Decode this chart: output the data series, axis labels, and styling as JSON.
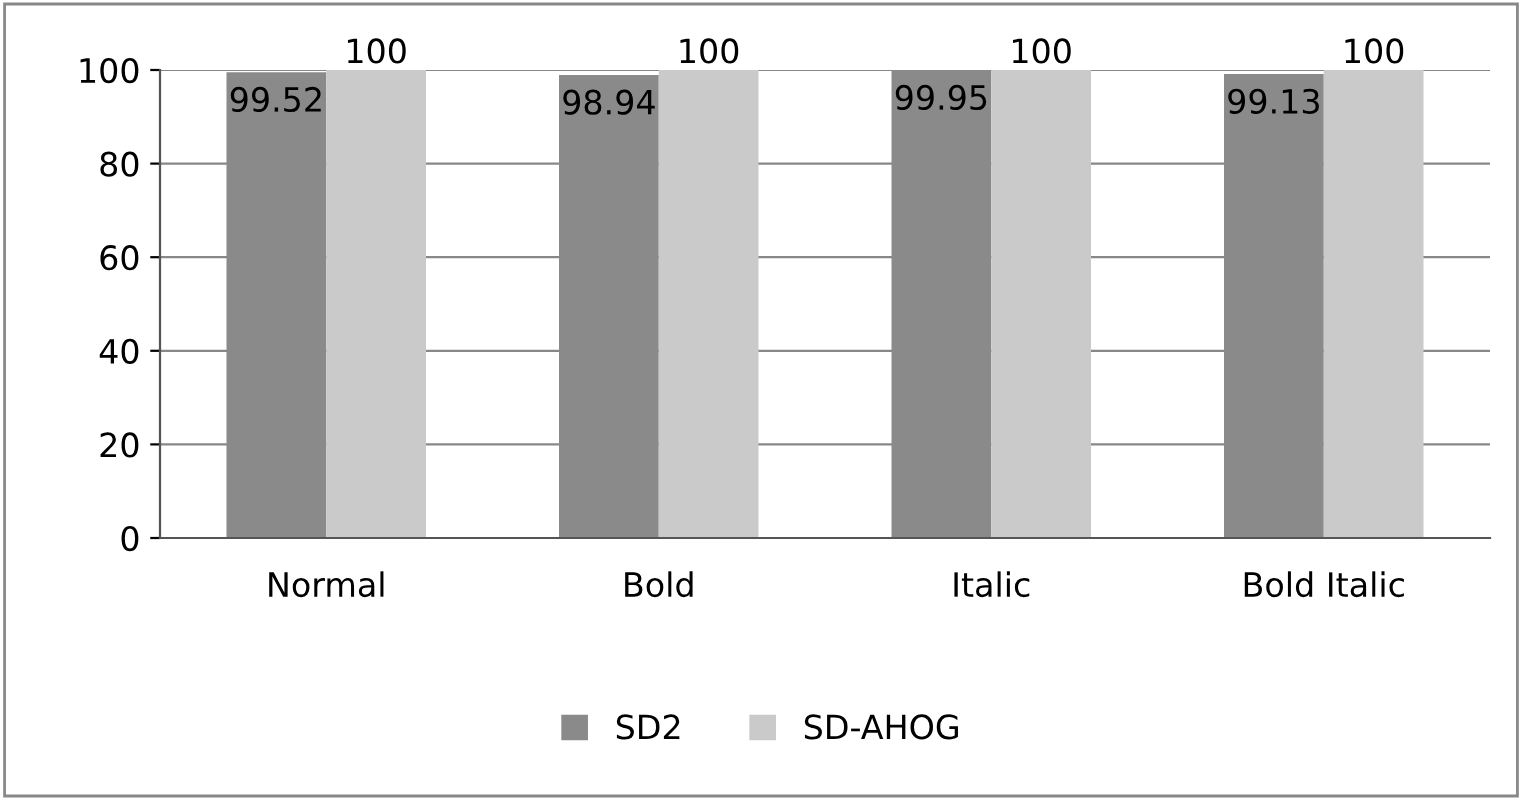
{
  "chart_data": {
    "type": "bar",
    "categories": [
      "Normal",
      "Bold",
      "Italic",
      "Bold Italic"
    ],
    "series": [
      {
        "name": "SD2",
        "color": "#8a8a8a",
        "values": [
          99.52,
          98.94,
          99.95,
          99.13
        ]
      },
      {
        "name": "SD-AHOG",
        "color": "#cacaca",
        "values": [
          100,
          100,
          100,
          100
        ]
      }
    ],
    "ylim": [
      0,
      100
    ],
    "yticks": [
      0,
      20,
      40,
      60,
      80,
      100
    ],
    "grid": "y",
    "legend": "bottom",
    "data_labels": true
  }
}
